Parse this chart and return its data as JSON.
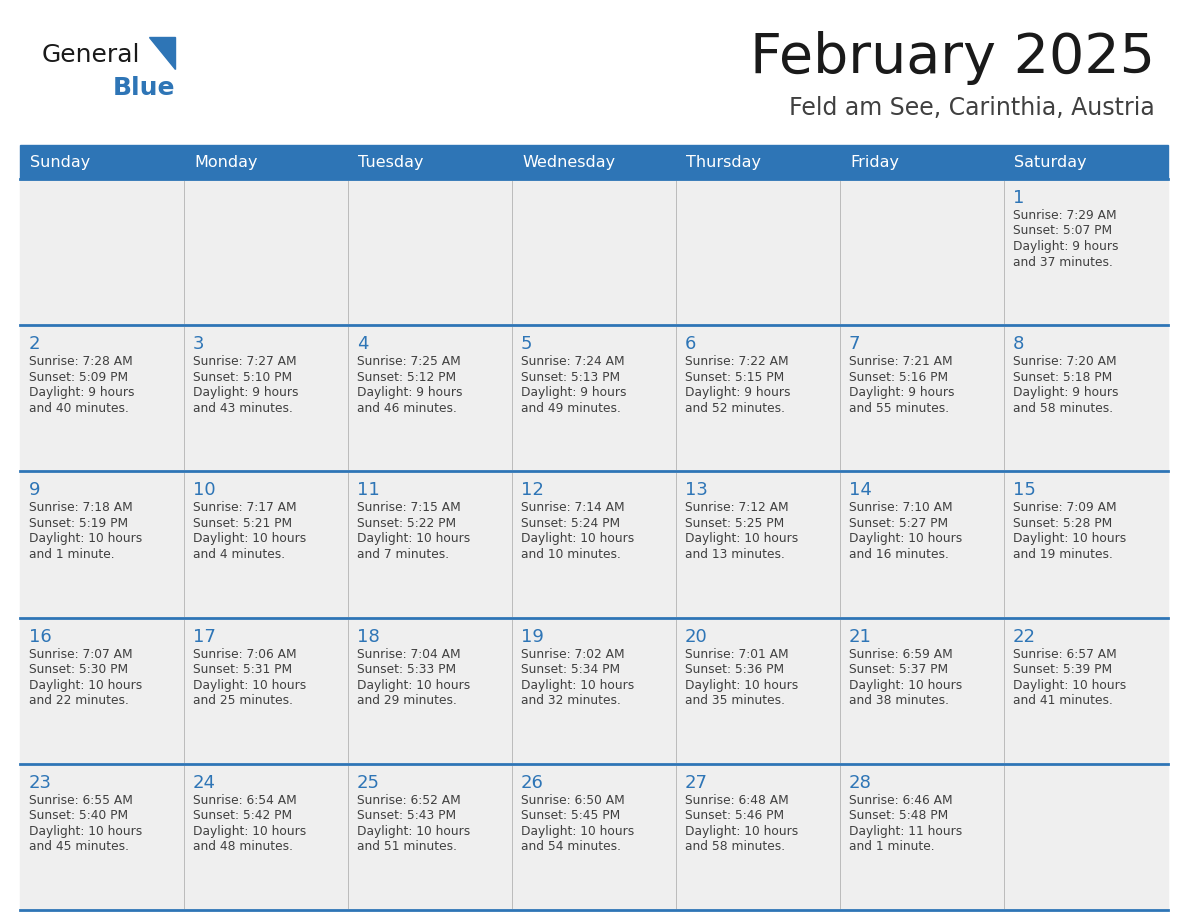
{
  "title": "February 2025",
  "subtitle": "Feld am See, Carinthia, Austria",
  "header_bg": "#2E75B6",
  "header_text": "#FFFFFF",
  "cell_bg_odd": "#EFEFEF",
  "cell_bg_even": "#FFFFFF",
  "day_number_color": "#2E75B6",
  "cell_text_color": "#404040",
  "grid_line_color": "#2E75B6",
  "days_of_week": [
    "Sunday",
    "Monday",
    "Tuesday",
    "Wednesday",
    "Thursday",
    "Friday",
    "Saturday"
  ],
  "logo_general_color": "#1A1A1A",
  "logo_blue_color": "#2E75B6",
  "calendar_data": [
    [
      {
        "day": null,
        "info": null
      },
      {
        "day": null,
        "info": null
      },
      {
        "day": null,
        "info": null
      },
      {
        "day": null,
        "info": null
      },
      {
        "day": null,
        "info": null
      },
      {
        "day": null,
        "info": null
      },
      {
        "day": 1,
        "info": "Sunrise: 7:29 AM\nSunset: 5:07 PM\nDaylight: 9 hours\nand 37 minutes."
      }
    ],
    [
      {
        "day": 2,
        "info": "Sunrise: 7:28 AM\nSunset: 5:09 PM\nDaylight: 9 hours\nand 40 minutes."
      },
      {
        "day": 3,
        "info": "Sunrise: 7:27 AM\nSunset: 5:10 PM\nDaylight: 9 hours\nand 43 minutes."
      },
      {
        "day": 4,
        "info": "Sunrise: 7:25 AM\nSunset: 5:12 PM\nDaylight: 9 hours\nand 46 minutes."
      },
      {
        "day": 5,
        "info": "Sunrise: 7:24 AM\nSunset: 5:13 PM\nDaylight: 9 hours\nand 49 minutes."
      },
      {
        "day": 6,
        "info": "Sunrise: 7:22 AM\nSunset: 5:15 PM\nDaylight: 9 hours\nand 52 minutes."
      },
      {
        "day": 7,
        "info": "Sunrise: 7:21 AM\nSunset: 5:16 PM\nDaylight: 9 hours\nand 55 minutes."
      },
      {
        "day": 8,
        "info": "Sunrise: 7:20 AM\nSunset: 5:18 PM\nDaylight: 9 hours\nand 58 minutes."
      }
    ],
    [
      {
        "day": 9,
        "info": "Sunrise: 7:18 AM\nSunset: 5:19 PM\nDaylight: 10 hours\nand 1 minute."
      },
      {
        "day": 10,
        "info": "Sunrise: 7:17 AM\nSunset: 5:21 PM\nDaylight: 10 hours\nand 4 minutes."
      },
      {
        "day": 11,
        "info": "Sunrise: 7:15 AM\nSunset: 5:22 PM\nDaylight: 10 hours\nand 7 minutes."
      },
      {
        "day": 12,
        "info": "Sunrise: 7:14 AM\nSunset: 5:24 PM\nDaylight: 10 hours\nand 10 minutes."
      },
      {
        "day": 13,
        "info": "Sunrise: 7:12 AM\nSunset: 5:25 PM\nDaylight: 10 hours\nand 13 minutes."
      },
      {
        "day": 14,
        "info": "Sunrise: 7:10 AM\nSunset: 5:27 PM\nDaylight: 10 hours\nand 16 minutes."
      },
      {
        "day": 15,
        "info": "Sunrise: 7:09 AM\nSunset: 5:28 PM\nDaylight: 10 hours\nand 19 minutes."
      }
    ],
    [
      {
        "day": 16,
        "info": "Sunrise: 7:07 AM\nSunset: 5:30 PM\nDaylight: 10 hours\nand 22 minutes."
      },
      {
        "day": 17,
        "info": "Sunrise: 7:06 AM\nSunset: 5:31 PM\nDaylight: 10 hours\nand 25 minutes."
      },
      {
        "day": 18,
        "info": "Sunrise: 7:04 AM\nSunset: 5:33 PM\nDaylight: 10 hours\nand 29 minutes."
      },
      {
        "day": 19,
        "info": "Sunrise: 7:02 AM\nSunset: 5:34 PM\nDaylight: 10 hours\nand 32 minutes."
      },
      {
        "day": 20,
        "info": "Sunrise: 7:01 AM\nSunset: 5:36 PM\nDaylight: 10 hours\nand 35 minutes."
      },
      {
        "day": 21,
        "info": "Sunrise: 6:59 AM\nSunset: 5:37 PM\nDaylight: 10 hours\nand 38 minutes."
      },
      {
        "day": 22,
        "info": "Sunrise: 6:57 AM\nSunset: 5:39 PM\nDaylight: 10 hours\nand 41 minutes."
      }
    ],
    [
      {
        "day": 23,
        "info": "Sunrise: 6:55 AM\nSunset: 5:40 PM\nDaylight: 10 hours\nand 45 minutes."
      },
      {
        "day": 24,
        "info": "Sunrise: 6:54 AM\nSunset: 5:42 PM\nDaylight: 10 hours\nand 48 minutes."
      },
      {
        "day": 25,
        "info": "Sunrise: 6:52 AM\nSunset: 5:43 PM\nDaylight: 10 hours\nand 51 minutes."
      },
      {
        "day": 26,
        "info": "Sunrise: 6:50 AM\nSunset: 5:45 PM\nDaylight: 10 hours\nand 54 minutes."
      },
      {
        "day": 27,
        "info": "Sunrise: 6:48 AM\nSunset: 5:46 PM\nDaylight: 10 hours\nand 58 minutes."
      },
      {
        "day": 28,
        "info": "Sunrise: 6:46 AM\nSunset: 5:48 PM\nDaylight: 11 hours\nand 1 minute."
      },
      {
        "day": null,
        "info": null
      }
    ]
  ]
}
